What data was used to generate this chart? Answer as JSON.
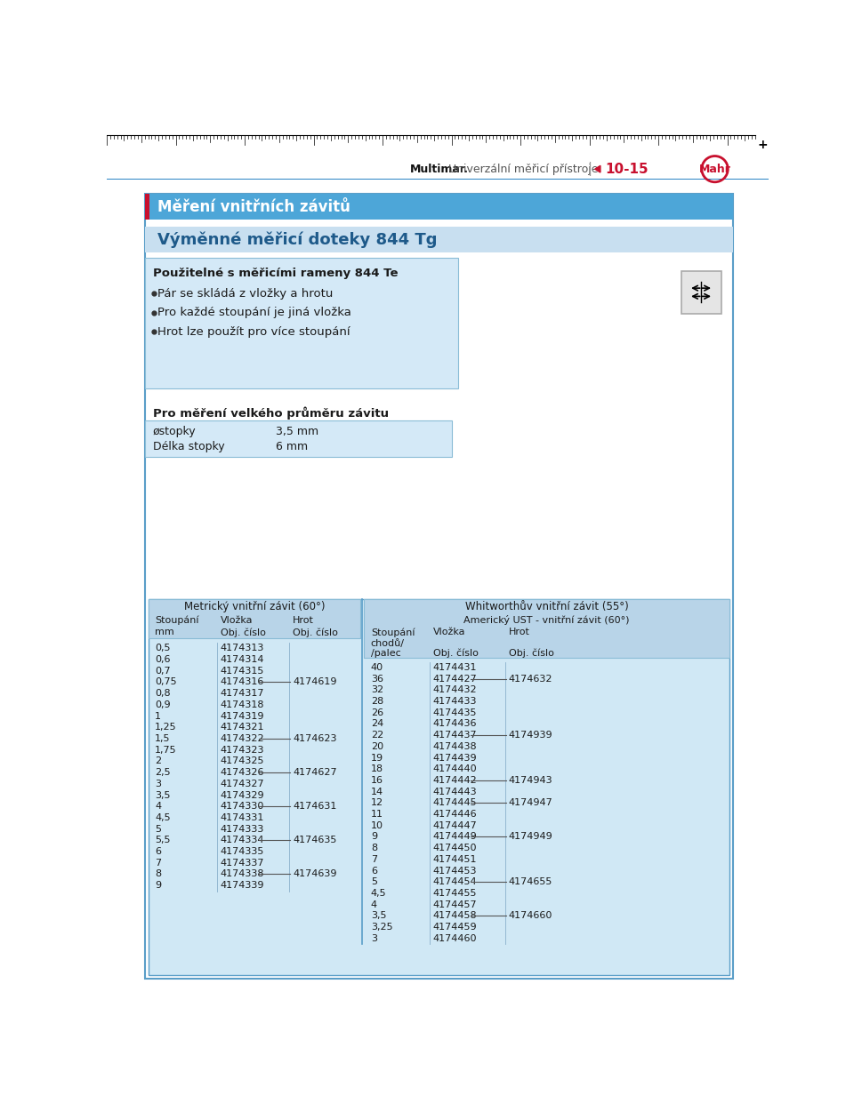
{
  "page_title_main": "Měření vnitřních závitů",
  "page_title_sub": "Výměnné měřicí doteky 844 Tg",
  "header_text": "Multimar.",
  "header_text2": "Univerzální měřicí přístroje",
  "header_page": "10-15",
  "header_brand": "Mahr",
  "section1_title": "Použitelné s měřicími rameny 844 Te",
  "bullets": [
    "Pár se skládá z vložky a hrotu",
    "Pro každé stoupání je jiná vložka",
    "Hrot lze použít pro více stoupání"
  ],
  "section2_title": "Pro měření velkého průměru závitu",
  "specs": [
    [
      "østopky",
      "3,5 mm"
    ],
    [
      "Délka stopky",
      "6 mm"
    ]
  ],
  "table1_title": "Metrický vnitřní závit (60°)",
  "table1_header": [
    "Stoupání",
    "Vložka",
    "Hrot"
  ],
  "table1_subheader": [
    "mm",
    "Obj. číslo",
    "Obj. číslo"
  ],
  "table1_data": [
    [
      "0,5",
      "4174313",
      ""
    ],
    [
      "0,6",
      "4174314",
      ""
    ],
    [
      "0,7",
      "4174315",
      ""
    ],
    [
      "0,75",
      "4174316",
      "4174619"
    ],
    [
      "0,8",
      "4174317",
      ""
    ],
    [
      "0,9",
      "4174318",
      ""
    ],
    [
      "1",
      "4174319",
      ""
    ],
    [
      "1,25",
      "4174321",
      ""
    ],
    [
      "1,5",
      "4174322",
      "4174623"
    ],
    [
      "1,75",
      "4174323",
      ""
    ],
    [
      "2",
      "4174325",
      ""
    ],
    [
      "2,5",
      "4174326",
      "4174627"
    ],
    [
      "3",
      "4174327",
      ""
    ],
    [
      "3,5",
      "4174329",
      ""
    ],
    [
      "4",
      "4174330",
      "4174631"
    ],
    [
      "4,5",
      "4174331",
      ""
    ],
    [
      "5",
      "4174333",
      ""
    ],
    [
      "5,5",
      "4174334",
      "4174635"
    ],
    [
      "6",
      "4174335",
      ""
    ],
    [
      "7",
      "4174337",
      ""
    ],
    [
      "8",
      "4174338",
      "4174639"
    ],
    [
      "9",
      "4174339",
      ""
    ]
  ],
  "table2_title": "Whitworthův vnitřní závit (55°)",
  "table2_title2": "Americký UST - vnitřní závit (60°)",
  "table2_header": [
    "Stoupání",
    "Vložka",
    "Hrot"
  ],
  "table2_header2": [
    "chodů/",
    "",
    ""
  ],
  "table2_header3": [
    "/palec",
    "Obj. číslo",
    "Obj. číslo"
  ],
  "table2_data": [
    [
      "40",
      "4174431",
      ""
    ],
    [
      "36",
      "4174427",
      "4174632"
    ],
    [
      "32",
      "4174432",
      ""
    ],
    [
      "28",
      "4174433",
      ""
    ],
    [
      "26",
      "4174435",
      ""
    ],
    [
      "24",
      "4174436",
      ""
    ],
    [
      "22",
      "4174437",
      "4174939"
    ],
    [
      "20",
      "4174438",
      ""
    ],
    [
      "19",
      "4174439",
      ""
    ],
    [
      "18",
      "4174440",
      ""
    ],
    [
      "16",
      "4174442",
      "4174943"
    ],
    [
      "14",
      "4174443",
      ""
    ],
    [
      "12",
      "4174445",
      "4174947"
    ],
    [
      "11",
      "4174446",
      ""
    ],
    [
      "10",
      "4174447",
      ""
    ],
    [
      "9",
      "4174449",
      "4174949"
    ],
    [
      "8",
      "4174450",
      ""
    ],
    [
      "7",
      "4174451",
      ""
    ],
    [
      "6",
      "4174453",
      ""
    ],
    [
      "5",
      "4174454",
      "4174655"
    ],
    [
      "4,5",
      "4174455",
      ""
    ],
    [
      "4",
      "4174457",
      ""
    ],
    [
      "3,5",
      "4174458",
      "4174660"
    ],
    [
      "3,25",
      "4174459",
      ""
    ],
    [
      "3",
      "4174460",
      ""
    ]
  ],
  "color_blue_dark": "#2b84c4",
  "color_blue_medium": "#4da6d8",
  "color_blue_light": "#c8dff0",
  "color_blue_section": "#d4e9f7",
  "color_blue_table_bg": "#d0e8f5",
  "color_table_header_bg": "#b8d4e8",
  "color_red": "#c8102e",
  "color_border": "#5a9ec8",
  "color_border_light": "#8abcd6",
  "fig_bg": "#ffffff",
  "text_dark": "#1a1a1a",
  "text_blue_title": "#1e5a8a"
}
